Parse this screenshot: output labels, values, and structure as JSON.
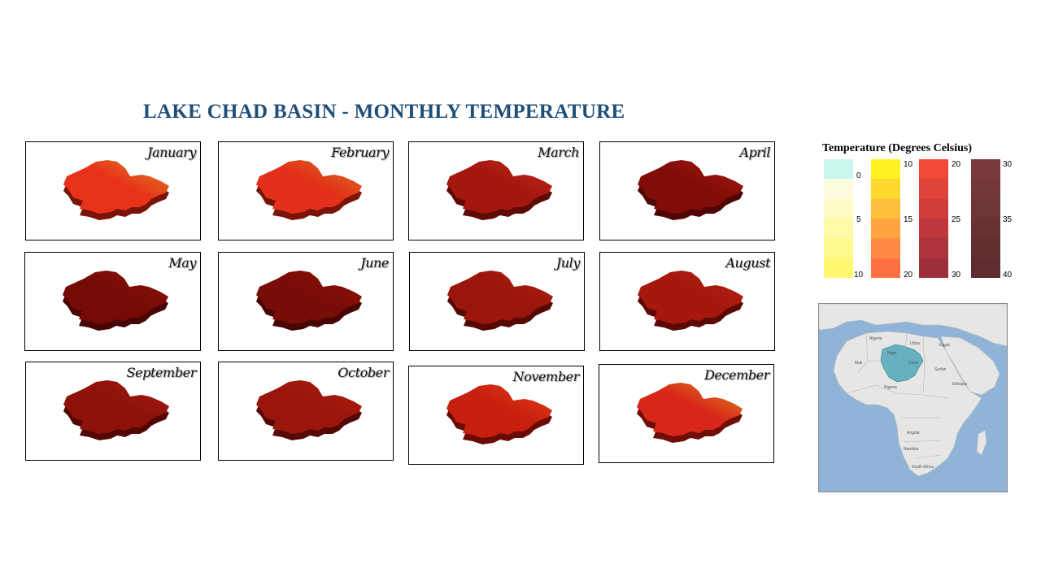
{
  "title": "LAKE CHAD BASIN - MONTHLY TEMPERATURE",
  "months": [
    {
      "label": "January",
      "base": "#e8321a",
      "top": "#d9861f",
      "dark": "#7a1408"
    },
    {
      "label": "February",
      "base": "#e3301a",
      "top": "#d4721c",
      "dark": "#7a1408"
    },
    {
      "label": "March",
      "base": "#a3170e",
      "top": "#c4291a",
      "dark": "#5e0a05"
    },
    {
      "label": "April",
      "base": "#820d08",
      "top": "#a8170e",
      "dark": "#4f0604"
    },
    {
      "label": "May",
      "base": "#760b06",
      "top": "#8f110a",
      "dark": "#470504"
    },
    {
      "label": "June",
      "base": "#7a0c07",
      "top": "#951109",
      "dark": "#470504"
    },
    {
      "label": "July",
      "base": "#9a150c",
      "top": "#b0200f",
      "dark": "#560804"
    },
    {
      "label": "August",
      "base": "#a6180d",
      "top": "#b22212",
      "dark": "#5c0905"
    },
    {
      "label": "September",
      "base": "#8e120a",
      "top": "#a3190e",
      "dark": "#520704"
    },
    {
      "label": "October",
      "base": "#9a160c",
      "top": "#b01d10",
      "dark": "#560804"
    },
    {
      "label": "November",
      "base": "#c8200f",
      "top": "#e1401a",
      "dark": "#6a0c05"
    },
    {
      "label": "December",
      "base": "#d9261a",
      "top": "#d98a1e",
      "dark": "#700d06"
    }
  ],
  "legend": {
    "title": "Temperature (Degrees Celsius)",
    "columns": [
      {
        "ticks": [
          "0",
          "5",
          "10"
        ],
        "colors": [
          "#c8f7ee",
          "#fffde0",
          "#fffbc4",
          "#fffaa8",
          "#fff98e",
          "#fff870"
        ]
      },
      {
        "ticks": [
          "10",
          "15",
          "20"
        ],
        "colors": [
          "#fff220",
          "#ffd830",
          "#ffbf3a",
          "#ffa43f",
          "#ff8a43",
          "#ff7043"
        ]
      },
      {
        "ticks": [
          "20",
          "25",
          "30"
        ],
        "colors": [
          "#f04a35",
          "#e04338",
          "#cf3d3a",
          "#be383b",
          "#ad333c",
          "#9e2f3a"
        ]
      },
      {
        "ticks": [
          "30",
          "35",
          "40"
        ],
        "colors": [
          "#7a3a3d",
          "#74383a",
          "#6e3537",
          "#683234",
          "#622f31",
          "#5c2c2e"
        ]
      }
    ]
  },
  "inset": {
    "labels": [
      "Algeria",
      "Libya",
      "Egypt",
      "Mali",
      "Niger",
      "Chad",
      "Sudan",
      "Nigeria",
      "Ethiopia",
      "Angola",
      "Namibia",
      "South Africa"
    ],
    "colors": {
      "sea": "#8fb4d8",
      "land": "#e6e6e4",
      "basin": "#4fa6b8"
    }
  }
}
